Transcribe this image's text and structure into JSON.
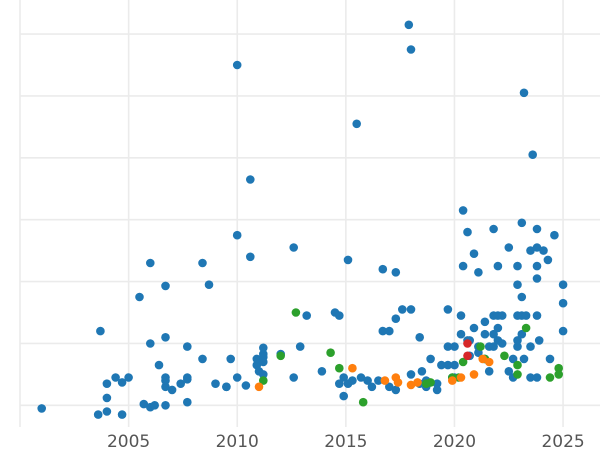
{
  "chart_data": {
    "type": "scatter",
    "title": "",
    "xlabel": "",
    "ylabel": "",
    "xlim": [
      2000,
      2026.7
    ],
    "x_ticks": [
      2005,
      2010,
      2015,
      2020,
      2025
    ],
    "x_tick_labels": [
      "2005",
      "2010",
      "2015",
      "2020",
      "2025"
    ],
    "y_gridlines": [
      0.55,
      1.55,
      2.55,
      3.55,
      4.55,
      5.55,
      6.55
    ],
    "ylim": [
      0.2,
      7.1
    ],
    "grid": true,
    "legend": "none",
    "series": [
      {
        "color": "#1f77b4",
        "points": [
          [
            2001.0,
            0.5
          ],
          [
            2003.6,
            0.4
          ],
          [
            2003.7,
            1.75
          ],
          [
            2004.0,
            0.45
          ],
          [
            2004.0,
            0.9
          ],
          [
            2004.0,
            0.67
          ],
          [
            2004.4,
            1.0
          ],
          [
            2004.7,
            0.92
          ],
          [
            2004.7,
            0.4
          ],
          [
            2005.0,
            1.0
          ],
          [
            2005.5,
            2.3
          ],
          [
            2005.7,
            0.57
          ],
          [
            2006.0,
            0.52
          ],
          [
            2006.0,
            1.55
          ],
          [
            2006.0,
            2.85
          ],
          [
            2006.2,
            0.55
          ],
          [
            2006.4,
            1.2
          ],
          [
            2006.7,
            1.0
          ],
          [
            2006.7,
            0.85
          ],
          [
            2006.7,
            0.95
          ],
          [
            2006.7,
            1.65
          ],
          [
            2006.7,
            2.48
          ],
          [
            2006.7,
            0.55
          ],
          [
            2007.0,
            0.8
          ],
          [
            2007.4,
            0.9
          ],
          [
            2007.7,
            0.97
          ],
          [
            2007.7,
            1.0
          ],
          [
            2007.7,
            1.5
          ],
          [
            2007.7,
            0.6
          ],
          [
            2008.4,
            2.85
          ],
          [
            2008.4,
            1.3
          ],
          [
            2008.7,
            2.5
          ],
          [
            2009.0,
            0.9
          ],
          [
            2009.5,
            0.85
          ],
          [
            2009.5,
            0.85
          ],
          [
            2009.7,
            1.3
          ],
          [
            2010.0,
            1.0
          ],
          [
            2010.0,
            6.05
          ],
          [
            2010.0,
            3.3
          ],
          [
            2010.4,
            0.87
          ],
          [
            2010.6,
            2.95
          ],
          [
            2010.6,
            4.2
          ],
          [
            2010.9,
            1.2
          ],
          [
            2010.9,
            1.3
          ],
          [
            2011.0,
            1.1
          ],
          [
            2011.2,
            1.25
          ],
          [
            2011.2,
            1.05
          ],
          [
            2011.2,
            1.38
          ],
          [
            2011.2,
            1.48
          ],
          [
            2011.2,
            1.33
          ],
          [
            2012.0,
            1.38
          ],
          [
            2012.6,
            1.0
          ],
          [
            2012.6,
            3.1
          ],
          [
            2012.9,
            1.5
          ],
          [
            2013.2,
            2.0
          ],
          [
            2013.9,
            1.1
          ],
          [
            2014.5,
            2.05
          ],
          [
            2014.7,
            0.9
          ],
          [
            2014.7,
            2.0
          ],
          [
            2014.9,
            0.7
          ],
          [
            2014.9,
            1.0
          ],
          [
            2015.1,
            2.9
          ],
          [
            2015.1,
            0.9
          ],
          [
            2015.3,
            0.95
          ],
          [
            2015.5,
            5.1
          ],
          [
            2015.7,
            1.0
          ],
          [
            2016.0,
            0.95
          ],
          [
            2016.2,
            0.85
          ],
          [
            2016.5,
            0.95
          ],
          [
            2016.7,
            1.75
          ],
          [
            2016.7,
            2.75
          ],
          [
            2017.0,
            0.85
          ],
          [
            2017.0,
            1.75
          ],
          [
            2017.3,
            1.95
          ],
          [
            2017.3,
            0.8
          ],
          [
            2017.3,
            2.7
          ],
          [
            2017.6,
            2.1
          ],
          [
            2017.9,
            6.7
          ],
          [
            2018.0,
            6.3
          ],
          [
            2018.0,
            1.05
          ],
          [
            2018.0,
            2.1
          ],
          [
            2018.4,
            0.9
          ],
          [
            2018.4,
            1.65
          ],
          [
            2018.5,
            1.1
          ],
          [
            2018.7,
            0.95
          ],
          [
            2018.7,
            0.85
          ],
          [
            2018.9,
            1.3
          ],
          [
            2019.2,
            0.9
          ],
          [
            2019.2,
            0.8
          ],
          [
            2019.4,
            1.2
          ],
          [
            2019.7,
            1.2
          ],
          [
            2019.7,
            2.1
          ],
          [
            2019.7,
            1.5
          ],
          [
            2019.9,
            1.0
          ],
          [
            2020.0,
            1.5
          ],
          [
            2020.0,
            1.2
          ],
          [
            2020.0,
            1.0
          ],
          [
            2020.3,
            1.7
          ],
          [
            2020.3,
            2.0
          ],
          [
            2020.4,
            3.7
          ],
          [
            2020.4,
            2.8
          ],
          [
            2020.6,
            1.6
          ],
          [
            2020.6,
            3.35
          ],
          [
            2020.7,
            1.35
          ],
          [
            2020.7,
            1.6
          ],
          [
            2020.9,
            1.8
          ],
          [
            2020.9,
            3.0
          ],
          [
            2021.1,
            1.4
          ],
          [
            2021.1,
            1.5
          ],
          [
            2021.1,
            2.7
          ],
          [
            2021.4,
            1.3
          ],
          [
            2021.4,
            1.9
          ],
          [
            2021.4,
            1.7
          ],
          [
            2021.6,
            1.1
          ],
          [
            2021.6,
            1.5
          ],
          [
            2021.8,
            1.5
          ],
          [
            2021.8,
            2.0
          ],
          [
            2021.8,
            3.4
          ],
          [
            2021.8,
            1.7
          ],
          [
            2022.0,
            1.6
          ],
          [
            2022.0,
            1.8
          ],
          [
            2022.0,
            2.0
          ],
          [
            2022.0,
            2.8
          ],
          [
            2022.2,
            1.55
          ],
          [
            2022.2,
            2.0
          ],
          [
            2022.5,
            1.1
          ],
          [
            2022.5,
            3.1
          ],
          [
            2022.7,
            1.3
          ],
          [
            2022.7,
            1.0
          ],
          [
            2022.9,
            1.5
          ],
          [
            2022.9,
            1.6
          ],
          [
            2022.9,
            2.0
          ],
          [
            2022.9,
            2.5
          ],
          [
            2022.9,
            2.8
          ],
          [
            2023.1,
            2.0
          ],
          [
            2023.1,
            2.3
          ],
          [
            2023.1,
            3.5
          ],
          [
            2023.1,
            1.7
          ],
          [
            2023.2,
            5.6
          ],
          [
            2023.2,
            1.3
          ],
          [
            2023.3,
            2.0
          ],
          [
            2023.5,
            1.0
          ],
          [
            2023.5,
            1.5
          ],
          [
            2023.5,
            3.05
          ],
          [
            2023.6,
            4.6
          ],
          [
            2023.8,
            1.0
          ],
          [
            2023.8,
            2.8
          ],
          [
            2023.8,
            2.6
          ],
          [
            2023.8,
            2.0
          ],
          [
            2023.8,
            3.1
          ],
          [
            2023.8,
            3.4
          ],
          [
            2023.9,
            1.6
          ],
          [
            2024.1,
            3.05
          ],
          [
            2024.3,
            2.9
          ],
          [
            2024.4,
            1.3
          ],
          [
            2024.6,
            3.3
          ],
          [
            2025.0,
            2.5
          ],
          [
            2025.0,
            2.2
          ],
          [
            2025.0,
            1.75
          ]
        ]
      },
      {
        "color": "#2ca02c",
        "points": [
          [
            2011.2,
            0.95
          ],
          [
            2012.0,
            1.35
          ],
          [
            2012.7,
            2.05
          ],
          [
            2014.3,
            1.4
          ],
          [
            2014.7,
            1.15
          ],
          [
            2015.8,
            0.6
          ],
          [
            2018.7,
            0.9
          ],
          [
            2018.9,
            0.92
          ],
          [
            2019.9,
            1.0
          ],
          [
            2020.2,
            1.0
          ],
          [
            2020.4,
            1.25
          ],
          [
            2021.2,
            1.5
          ],
          [
            2021.4,
            1.3
          ],
          [
            2022.3,
            1.35
          ],
          [
            2022.9,
            1.2
          ],
          [
            2022.9,
            1.05
          ],
          [
            2023.3,
            1.8
          ],
          [
            2024.4,
            1.0
          ],
          [
            2024.8,
            1.15
          ],
          [
            2024.8,
            1.05
          ]
        ]
      },
      {
        "color": "#ff7f0e",
        "points": [
          [
            2011.0,
            0.85
          ],
          [
            2015.3,
            1.15
          ],
          [
            2016.8,
            0.95
          ],
          [
            2017.3,
            1.0
          ],
          [
            2017.4,
            0.92
          ],
          [
            2018.0,
            0.88
          ],
          [
            2018.3,
            0.92
          ],
          [
            2019.9,
            0.95
          ],
          [
            2020.3,
            1.0
          ],
          [
            2020.9,
            1.05
          ],
          [
            2021.3,
            1.3
          ],
          [
            2021.6,
            1.25
          ]
        ]
      },
      {
        "color": "#d62728",
        "points": [
          [
            2020.6,
            1.35
          ],
          [
            2020.6,
            1.55
          ]
        ]
      }
    ]
  }
}
